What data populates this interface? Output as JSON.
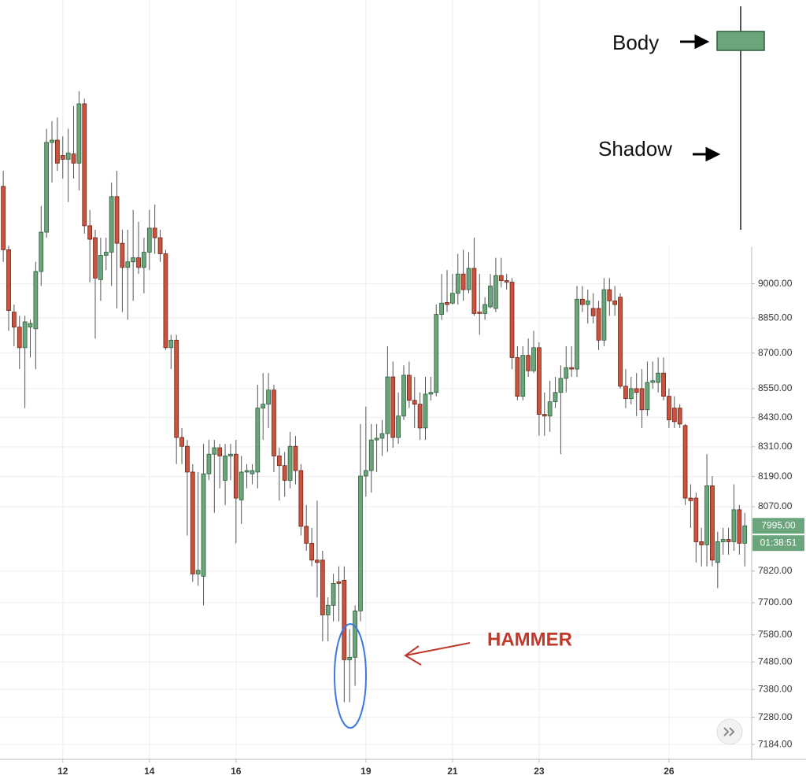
{
  "chart_data": {
    "type": "candlestick",
    "x": [
      10.625,
      10.75,
      10.875,
      11,
      11.125,
      11.25,
      11.375,
      11.5,
      11.625,
      11.75,
      11.875,
      12,
      12.125,
      12.25,
      12.375,
      12.5,
      12.625,
      12.75,
      12.875,
      13,
      13.125,
      13.25,
      13.375,
      13.5,
      13.625,
      13.75,
      13.875,
      14,
      14.125,
      14.25,
      14.375,
      14.5,
      14.625,
      14.75,
      14.875,
      15,
      15.125,
      15.25,
      15.375,
      15.5,
      15.625,
      15.75,
      15.875,
      16,
      16.125,
      16.25,
      16.375,
      16.5,
      16.625,
      16.75,
      16.875,
      17,
      17.125,
      17.25,
      17.375,
      17.5,
      17.625,
      17.75,
      17.875,
      18,
      18.125,
      18.25,
      18.375,
      18.5,
      18.625,
      18.75,
      18.875,
      19,
      19.125,
      19.25,
      19.375,
      19.5,
      19.625,
      19.75,
      19.875,
      20,
      20.125,
      20.25,
      20.375,
      20.5,
      20.625,
      20.75,
      20.875,
      21,
      21.125,
      21.25,
      21.375,
      21.5,
      21.625,
      21.75,
      21.875,
      22,
      22.125,
      22.25,
      22.375,
      22.5,
      22.625,
      22.75,
      22.875,
      23,
      23.125,
      23.25,
      23.375,
      23.5,
      23.625,
      23.75,
      23.875,
      24,
      24.125,
      24.25,
      24.375,
      24.5,
      24.625,
      24.75,
      24.875,
      25,
      25.125,
      25.25,
      25.375,
      25.5,
      25.625,
      25.75,
      25.875,
      26,
      26.125,
      26.25,
      26.375,
      26.5,
      26.625,
      26.75,
      26.875,
      27,
      27.125,
      27.25,
      27.375,
      27.5,
      27.625,
      27.75
    ],
    "open": [
      9439,
      9151,
      8876,
      8811,
      8723,
      8811,
      8804,
      9054,
      9230,
      9644,
      9655,
      9583,
      9565,
      9590,
      9547,
      9828,
      9259,
      9205,
      9018,
      9126,
      9140,
      9392,
      9180,
      9072,
      9097,
      9115,
      9072,
      9140,
      9248,
      9205,
      9133,
      8723,
      8755,
      8348,
      8312,
      8208,
      7809,
      7800,
      8201,
      8280,
      8306,
      8175,
      8273,
      8280,
      8097,
      8208,
      8201,
      8208,
      8469,
      8485,
      8544,
      8273,
      8234,
      8175,
      8312,
      8214,
      7993,
      7927,
      7862,
      7862,
      7654,
      7690,
      7779,
      7785,
      7488,
      7497,
      7669,
      8192,
      8214,
      8338,
      8345,
      8364,
      8599,
      8348,
      8436,
      8606,
      8501,
      8485,
      8387,
      8527,
      8534,
      8866,
      8918,
      8915,
      8958,
      9043,
      8974,
      9068,
      8876,
      8870,
      8899,
      8892,
      9036,
      9014,
      9007,
      8681,
      8518,
      8690,
      8625,
      8723,
      8443,
      8436,
      8495,
      8534,
      8593,
      8638,
      8632,
      8932,
      8909,
      8892,
      8892,
      8755,
      8974,
      8925,
      8941,
      8560,
      8508,
      8550,
      8550,
      8462,
      8576,
      8576,
      8615,
      8518,
      8469,
      8469,
      8397,
      8104,
      8104,
      7933,
      7921,
      8153,
      7853,
      7933,
      7942,
      7933,
      8058,
      7927
    ],
    "high": [
      9511,
      9169,
      8909,
      8860,
      8860,
      8843,
      9097,
      9349,
      9709,
      9745,
      9763,
      9673,
      9709,
      9817,
      9889,
      9853,
      9331,
      9241,
      9205,
      9205,
      9457,
      9511,
      9241,
      9241,
      9331,
      9277,
      9205,
      9331,
      9356,
      9241,
      9151,
      8778,
      8778,
      8387,
      8338,
      8240,
      8208,
      8322,
      8338,
      8338,
      8322,
      8322,
      8322,
      8338,
      8273,
      8240,
      8240,
      8566,
      8615,
      8615,
      8566,
      8306,
      8289,
      8371,
      8354,
      8240,
      8077,
      7987,
      8094,
      7898,
      7720,
      7809,
      7838,
      7838,
      7601,
      7690,
      8403,
      8475,
      8403,
      8403,
      8420,
      8729,
      8664,
      8534,
      8648,
      8664,
      8599,
      8534,
      8599,
      8599,
      8909,
      9043,
      9061,
      9043,
      9133,
      9151,
      9140,
      9205,
      9043,
      8941,
      9043,
      9115,
      9115,
      9043,
      9025,
      8729,
      8729,
      8762,
      8795,
      8746,
      8534,
      8583,
      8599,
      8648,
      8729,
      8729,
      8990,
      8990,
      8974,
      8958,
      8925,
      9025,
      9025,
      8990,
      8958,
      8632,
      8599,
      8615,
      8632,
      8664,
      8664,
      8681,
      8681,
      8550,
      8518,
      8485,
      8403,
      8159,
      8126,
      7987,
      8280,
      8192,
      7972,
      7987,
      7987,
      8159,
      8077,
      8046
    ],
    "low": [
      9097,
      8795,
      8729,
      8632,
      8469,
      8681,
      8632,
      8990,
      9205,
      9457,
      9511,
      9475,
      9367,
      9475,
      9421,
      9223,
      9007,
      8762,
      8925,
      9061,
      8990,
      8892,
      8876,
      8843,
      8925,
      9043,
      8958,
      9061,
      9133,
      9097,
      8713,
      8632,
      8240,
      8240,
      7957,
      7779,
      7764,
      7690,
      8175,
      8046,
      8143,
      8077,
      8175,
      7927,
      8002,
      8143,
      8159,
      8143,
      8338,
      8387,
      8208,
      8094,
      8110,
      8143,
      8159,
      7957,
      7898,
      7838,
      7720,
      7556,
      7556,
      7630,
      7630,
      7334,
      7334,
      7393,
      7630,
      8110,
      8126,
      8208,
      8273,
      8289,
      8306,
      8322,
      8420,
      8469,
      8387,
      8338,
      8338,
      8501,
      8518,
      8843,
      8876,
      8909,
      8909,
      8925,
      8958,
      8860,
      8778,
      8843,
      8892,
      8876,
      8984,
      8974,
      8632,
      8501,
      8501,
      8599,
      8615,
      8355,
      8355,
      8371,
      8469,
      8280,
      8534,
      8599,
      8599,
      8876,
      8827,
      8827,
      8713,
      8729,
      8860,
      8860,
      8550,
      8469,
      8485,
      8436,
      8387,
      8436,
      8550,
      8534,
      8501,
      8387,
      8387,
      8387,
      8077,
      7987,
      7853,
      7838,
      7838,
      7838,
      7755,
      7883,
      7883,
      7898,
      7883,
      7838
    ],
    "close": [
      9151,
      8883,
      8811,
      8723,
      8834,
      8827,
      9054,
      9230,
      9644,
      9655,
      9547,
      9565,
      9594,
      9547,
      9828,
      9259,
      9198,
      9025,
      9126,
      9140,
      9392,
      9180,
      9072,
      9097,
      9115,
      9072,
      9140,
      9248,
      9205,
      9133,
      8723,
      8755,
      8348,
      8312,
      8208,
      7809,
      7823,
      8201,
      8280,
      8306,
      8273,
      8273,
      8280,
      8104,
      8208,
      8214,
      8214,
      8469,
      8485,
      8544,
      8273,
      8234,
      8175,
      8312,
      8214,
      7993,
      7927,
      7862,
      7853,
      7654,
      7690,
      7773,
      7773,
      7488,
      7497,
      7669,
      8192,
      8214,
      8338,
      8345,
      8364,
      8599,
      8348,
      8436,
      8606,
      8501,
      8485,
      8387,
      8527,
      8534,
      8866,
      8915,
      8909,
      8958,
      9043,
      8974,
      9068,
      8870,
      8870,
      8909,
      8990,
      9036,
      9014,
      9007,
      8681,
      8518,
      8690,
      8625,
      8723,
      8443,
      8436,
      8495,
      8534,
      8593,
      8638,
      8632,
      8932,
      8909,
      8925,
      8860,
      8755,
      8974,
      8925,
      8909,
      8560,
      8508,
      8550,
      8534,
      8462,
      8576,
      8583,
      8615,
      8518,
      8420,
      8413,
      8403,
      8104,
      8094,
      7933,
      7921,
      8153,
      7862,
      7933,
      7942,
      7933,
      8058,
      7927,
      7995
    ],
    "up_color": "#6aa57b",
    "down_color": "#c9533d",
    "log_scale": true,
    "grid": true,
    "xlim": [
      10.55,
      27.91
    ],
    "xticks": [
      12,
      14,
      16,
      19,
      21,
      23,
      26
    ],
    "ylim": [
      7132,
      10340
    ],
    "yticks": [
      {
        "value": 9000,
        "label": "9000.00"
      },
      {
        "value": 8850,
        "label": "8850.00"
      },
      {
        "value": 8700,
        "label": "8700.00"
      },
      {
        "value": 8550,
        "label": "8550.00"
      },
      {
        "value": 8430,
        "label": "8430.00"
      },
      {
        "value": 8310,
        "label": "8310.00"
      },
      {
        "value": 8190,
        "label": "8190.00"
      },
      {
        "value": 8070,
        "label": "8070.00"
      },
      {
        "value": 7820,
        "label": "7820.00"
      },
      {
        "value": 7700,
        "label": "7700.00"
      },
      {
        "value": 7580,
        "label": "7580.00"
      },
      {
        "value": 7480,
        "label": "7480.00"
      },
      {
        "value": 7380,
        "label": "7380.00"
      },
      {
        "value": 7280,
        "label": "7280.00"
      },
      {
        "value": 7184,
        "label": "7184.00"
      }
    ],
    "last_price": {
      "value": 7995,
      "label": "7995.00"
    },
    "countdown": "01:38:51",
    "annotations": {
      "hammer": "HAMMER",
      "body": "Body",
      "shadow": "Shadow"
    }
  }
}
